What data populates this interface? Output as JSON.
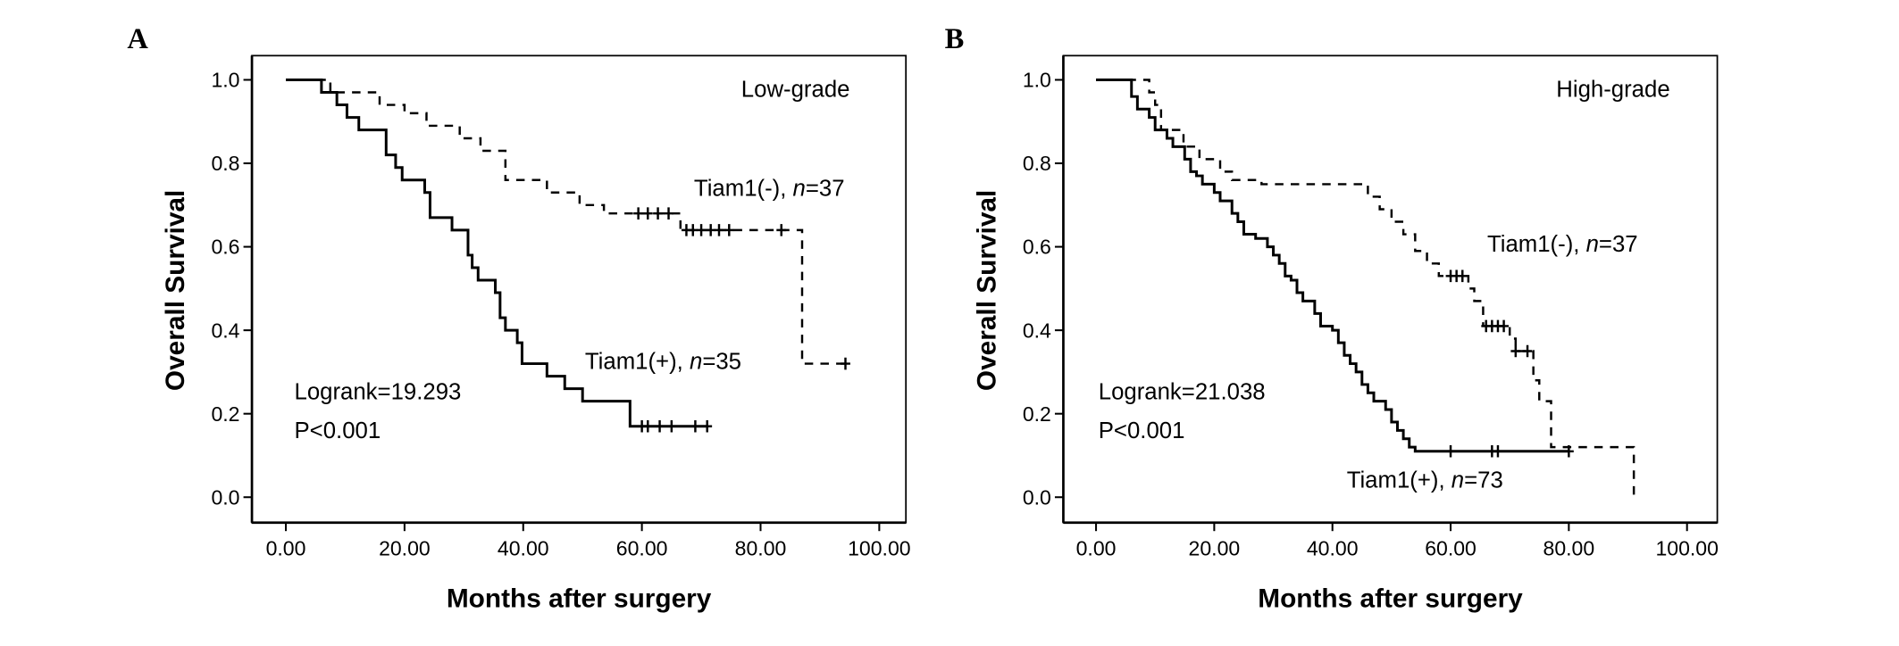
{
  "chart_data": [
    {
      "type": "line",
      "subtype": "kaplan-meier",
      "panel_label": "A",
      "title": "Low-grade",
      "xlabel": "Months after surgery",
      "ylabel": "Overall Survival",
      "xlim": [
        0,
        100
      ],
      "ylim": [
        0,
        1
      ],
      "xticks": [
        "0.00",
        "20.00",
        "40.00",
        "60.00",
        "80.00",
        "100.00"
      ],
      "yticks": [
        "0.0",
        "0.2",
        "0.4",
        "0.6",
        "0.8",
        "1.0"
      ],
      "grid": false,
      "stats": {
        "logrank": "Logrank=19.293",
        "p": "P<0.001"
      },
      "series": [
        {
          "name": "Tiam1(+)",
          "label_prefix": "Tiam1(+), ",
          "n_label": "n",
          "n_value": "=35",
          "style": "solid",
          "steps": [
            [
              0,
              1.0
            ],
            [
              6,
              0.97
            ],
            [
              8.6,
              0.94
            ],
            [
              10.3,
              0.91
            ],
            [
              12.3,
              0.88
            ],
            [
              16.9,
              0.82
            ],
            [
              18.5,
              0.79
            ],
            [
              19.6,
              0.76
            ],
            [
              23.4,
              0.73
            ],
            [
              24.3,
              0.67
            ],
            [
              28,
              0.64
            ],
            [
              30.7,
              0.58
            ],
            [
              31.4,
              0.55
            ],
            [
              32.4,
              0.52
            ],
            [
              35.3,
              0.49
            ],
            [
              36.1,
              0.43
            ],
            [
              37,
              0.4
            ],
            [
              39,
              0.37
            ],
            [
              39.8,
              0.32
            ],
            [
              44,
              0.29
            ],
            [
              47,
              0.26
            ],
            [
              50,
              0.23
            ],
            [
              58,
              0.17
            ]
          ],
          "end": 71,
          "censored": [
            60,
            61,
            63,
            65,
            69,
            71
          ]
        },
        {
          "name": "Tiam1(-)",
          "label_prefix": "Tiam1(-), ",
          "n_label": "n",
          "n_value": "=37",
          "style": "dashed",
          "steps": [
            [
              0,
              1.0
            ],
            [
              7.5,
              0.97
            ],
            [
              15.8,
              0.94
            ],
            [
              20,
              0.92
            ],
            [
              23.7,
              0.89
            ],
            [
              29.3,
              0.86
            ],
            [
              32.8,
              0.83
            ],
            [
              37,
              0.76
            ],
            [
              44,
              0.73
            ],
            [
              49.5,
              0.7
            ],
            [
              53.6,
              0.68
            ],
            [
              66.5,
              0.64
            ],
            [
              87,
              0.32
            ]
          ],
          "end": 95,
          "censored": [
            59.4,
            61,
            62.7,
            64.5,
            67.5,
            68.6,
            70,
            71.6,
            73,
            74.7,
            83.5,
            94.3
          ]
        }
      ]
    },
    {
      "type": "line",
      "subtype": "kaplan-meier",
      "panel_label": "B",
      "title": "High-grade",
      "xlabel": "Months after surgery",
      "ylabel": "Overall Survival",
      "xlim": [
        0,
        100
      ],
      "ylim": [
        0,
        1
      ],
      "xticks": [
        "0.00",
        "20.00",
        "40.00",
        "60.00",
        "80.00",
        "100.00"
      ],
      "yticks": [
        "0.0",
        "0.2",
        "0.4",
        "0.6",
        "0.8",
        "1.0"
      ],
      "grid": false,
      "stats": {
        "logrank": "Logrank=21.038",
        "p": "P<0.001"
      },
      "series": [
        {
          "name": "Tiam1(+)",
          "label_prefix": "Tiam1(+), ",
          "n_label": "n",
          "n_value": "=73",
          "style": "solid",
          "steps": [
            [
              0,
              1.0
            ],
            [
              6,
              0.96
            ],
            [
              7,
              0.93
            ],
            [
              9,
              0.91
            ],
            [
              10,
              0.88
            ],
            [
              12,
              0.86
            ],
            [
              13,
              0.84
            ],
            [
              15,
              0.81
            ],
            [
              16,
              0.78
            ],
            [
              17,
              0.77
            ],
            [
              18,
              0.75
            ],
            [
              20,
              0.73
            ],
            [
              21,
              0.71
            ],
            [
              23,
              0.68
            ],
            [
              24,
              0.66
            ],
            [
              25,
              0.63
            ],
            [
              27,
              0.62
            ],
            [
              29,
              0.6
            ],
            [
              30,
              0.58
            ],
            [
              31,
              0.56
            ],
            [
              32,
              0.53
            ],
            [
              33,
              0.52
            ],
            [
              34,
              0.49
            ],
            [
              35,
              0.47
            ],
            [
              37,
              0.44
            ],
            [
              38,
              0.41
            ],
            [
              40,
              0.4
            ],
            [
              41,
              0.37
            ],
            [
              42,
              0.34
            ],
            [
              43,
              0.32
            ],
            [
              44,
              0.3
            ],
            [
              45,
              0.27
            ],
            [
              46,
              0.25
            ],
            [
              47,
              0.23
            ],
            [
              49,
              0.21
            ],
            [
              50,
              0.18
            ],
            [
              51,
              0.16
            ],
            [
              52,
              0.14
            ],
            [
              53,
              0.12
            ],
            [
              54,
              0.11
            ]
          ],
          "end": 80,
          "censored": [
            60,
            67,
            68,
            80
          ]
        },
        {
          "name": "Tiam1(-)",
          "label_prefix": "Tiam1(-), ",
          "n_label": "n",
          "n_value": "=37",
          "style": "dashed",
          "steps": [
            [
              0,
              1.0
            ],
            [
              9,
              0.97
            ],
            [
              10,
              0.94
            ],
            [
              11,
              0.88
            ],
            [
              14.8,
              0.84
            ],
            [
              17.5,
              0.81
            ],
            [
              21,
              0.78
            ],
            [
              23,
              0.76
            ],
            [
              28,
              0.75
            ],
            [
              46,
              0.72
            ],
            [
              48,
              0.69
            ],
            [
              50,
              0.66
            ],
            [
              52,
              0.63
            ],
            [
              54,
              0.59
            ],
            [
              56,
              0.56
            ],
            [
              58,
              0.53
            ],
            [
              63,
              0.5
            ],
            [
              64,
              0.47
            ],
            [
              65.5,
              0.41
            ],
            [
              70,
              0.38
            ],
            [
              71,
              0.35
            ],
            [
              74,
              0.28
            ],
            [
              75,
              0.23
            ],
            [
              77,
              0.12
            ],
            [
              91,
              0.0
            ]
          ],
          "end": 91,
          "censored": [
            60,
            61,
            62,
            66,
            67,
            68,
            69,
            71,
            73
          ]
        }
      ]
    }
  ]
}
